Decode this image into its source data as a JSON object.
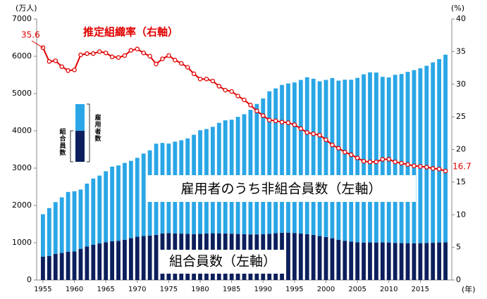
{
  "chart_data": {
    "type": "stacked-bar-line",
    "y_label": "(万人)",
    "y2_label": "(%)",
    "x_label": "(年)",
    "x": [
      1955,
      1956,
      1957,
      1958,
      1959,
      1960,
      1961,
      1962,
      1963,
      1964,
      1965,
      1966,
      1967,
      1968,
      1969,
      1970,
      1971,
      1972,
      1973,
      1974,
      1975,
      1976,
      1977,
      1978,
      1979,
      1980,
      1981,
      1982,
      1983,
      1984,
      1985,
      1986,
      1987,
      1988,
      1989,
      1990,
      1991,
      1992,
      1993,
      1994,
      1995,
      1996,
      1997,
      1998,
      1999,
      2000,
      2001,
      2002,
      2003,
      2004,
      2005,
      2006,
      2007,
      2008,
      2009,
      2010,
      2011,
      2012,
      2013,
      2014,
      2015,
      2016,
      2017,
      2018,
      2019
    ],
    "xlim": [
      1954,
      2020
    ],
    "xticks": [
      1955,
      1960,
      1965,
      1970,
      1975,
      1980,
      1985,
      1990,
      1995,
      2000,
      2005,
      2010,
      2015
    ],
    "ylim": [
      0,
      7000
    ],
    "yticks": [
      0,
      1000,
      2000,
      3000,
      4000,
      5000,
      6000,
      7000
    ],
    "y2lim": [
      0,
      40
    ],
    "y2ticks": [
      0,
      5,
      10,
      15,
      20,
      25,
      30,
      35,
      40
    ],
    "series": [
      {
        "name": "組合員数（左軸）",
        "color": "#0c1f5c",
        "kind": "bar",
        "values": [
          628,
          646,
          702,
          725,
          758,
          766,
          837,
          897,
          944,
          980,
          1015,
          1040,
          1048,
          1080,
          1125,
          1160,
          1180,
          1193,
          1210,
          1246,
          1259,
          1251,
          1244,
          1238,
          1231,
          1237,
          1247,
          1253,
          1252,
          1246,
          1242,
          1234,
          1227,
          1223,
          1223,
          1227,
          1240,
          1254,
          1266,
          1270,
          1261,
          1245,
          1229,
          1209,
          1183,
          1154,
          1121,
          1080,
          1053,
          1031,
          1014,
          1004,
          1008,
          1007,
          1008,
          1005,
          996,
          989,
          988,
          985,
          988,
          994,
          998,
          1007,
          1009
        ]
      },
      {
        "name": "雇用者のうち非組合員数（左軸）",
        "color": "#2aa6e6",
        "kind": "bar",
        "values": [
          1136,
          1282,
          1387,
          1492,
          1603,
          1613,
          1589,
          1688,
          1776,
          1820,
          1902,
          2001,
          2025,
          2060,
          2071,
          2117,
          2211,
          2285,
          2446,
          2430,
          2401,
          2461,
          2503,
          2560,
          2665,
          2779,
          2802,
          2855,
          2963,
          3036,
          3056,
          3142,
          3219,
          3340,
          3499,
          3642,
          3821,
          3885,
          3965,
          4000,
          4037,
          4121,
          4209,
          4188,
          4146,
          4213,
          4294,
          4267,
          4319,
          4339,
          4408,
          4512,
          4561,
          4557,
          4441,
          4427,
          4507,
          4536,
          4594,
          4644,
          4690,
          4752,
          4838,
          4917,
          5033
        ]
      },
      {
        "name": "推定組織率（右軸）",
        "color": "#e00000",
        "kind": "line",
        "axis": "y2",
        "values": [
          35.6,
          33.5,
          33.6,
          32.7,
          32.1,
          32.2,
          34.5,
          34.7,
          34.7,
          35.0,
          34.8,
          34.2,
          34.1,
          34.4,
          35.2,
          35.4,
          34.8,
          34.3,
          33.1,
          33.9,
          34.4,
          33.7,
          33.2,
          32.6,
          31.6,
          30.8,
          30.8,
          30.5,
          29.7,
          29.1,
          28.9,
          28.2,
          27.6,
          26.8,
          25.9,
          25.2,
          24.5,
          24.4,
          24.2,
          24.1,
          23.8,
          23.2,
          22.6,
          22.4,
          22.2,
          21.5,
          20.7,
          20.2,
          19.6,
          19.2,
          18.7,
          18.2,
          18.1,
          18.1,
          18.5,
          18.5,
          18.1,
          17.9,
          17.7,
          17.5,
          17.4,
          17.3,
          17.1,
          17.0,
          16.7
        ]
      }
    ],
    "legend_labels": [
      "雇用者数",
      "組合員数"
    ]
  }
}
